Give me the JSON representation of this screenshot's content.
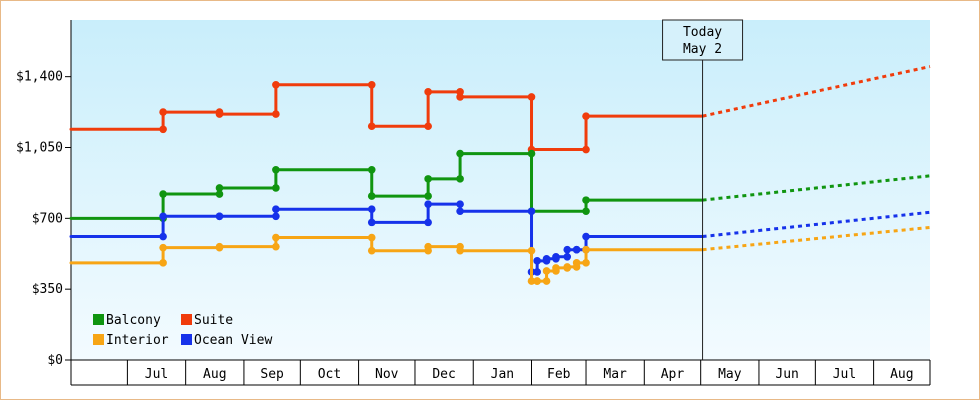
{
  "chart_data": {
    "type": "line",
    "title": "",
    "xlabel": "",
    "ylabel": "",
    "ylim": [
      0,
      1680
    ],
    "y_ticks": [
      {
        "value": 0,
        "label": "$0"
      },
      {
        "value": 350,
        "label": "$350"
      },
      {
        "value": 700,
        "label": "$700"
      },
      {
        "value": 1050,
        "label": "$1,050"
      },
      {
        "value": 1400,
        "label": "$1,400"
      }
    ],
    "x_range": [
      "2019-06-01",
      "2020-08-31"
    ],
    "x_ticks": [
      {
        "start": "2019-06-01",
        "end": "2019-07-01",
        "label": ""
      },
      {
        "start": "2019-07-01",
        "end": "2019-08-01",
        "label": "Jul"
      },
      {
        "start": "2019-08-01",
        "end": "2019-09-01",
        "label": "Aug"
      },
      {
        "start": "2019-09-01",
        "end": "2019-10-01",
        "label": "Sep"
      },
      {
        "start": "2019-10-01",
        "end": "2019-11-01",
        "label": "Oct"
      },
      {
        "start": "2019-11-01",
        "end": "2019-12-01",
        "label": "Nov"
      },
      {
        "start": "2019-12-01",
        "end": "2020-01-01",
        "label": "Dec"
      },
      {
        "start": "2020-01-01",
        "end": "2020-02-01",
        "label": "Jan"
      },
      {
        "start": "2020-02-01",
        "end": "2020-03-01",
        "label": "Feb"
      },
      {
        "start": "2020-03-01",
        "end": "2020-04-01",
        "label": "Mar"
      },
      {
        "start": "2020-04-01",
        "end": "2020-05-01",
        "label": "Apr"
      },
      {
        "start": "2020-05-01",
        "end": "2020-06-01",
        "label": "May"
      },
      {
        "start": "2020-06-01",
        "end": "2020-07-01",
        "label": "Jun"
      },
      {
        "start": "2020-07-01",
        "end": "2020-08-01",
        "label": "Jul"
      },
      {
        "start": "2020-08-01",
        "end": "2020-08-31",
        "label": "Aug"
      }
    ],
    "today": {
      "date": "2020-05-02",
      "label_line1": "Today",
      "label_line2": "May 2"
    },
    "grid": false,
    "legend_position": "bottom-left",
    "background_gradient": [
      "#c9eefb",
      "#f3fbff"
    ],
    "series": [
      {
        "name": "Suite",
        "color": "#f03c0c",
        "points": [
          [
            "2019-06-01",
            1140
          ],
          [
            "2019-07-20",
            1140
          ],
          [
            "2019-07-20",
            1225
          ],
          [
            "2019-08-19",
            1225
          ],
          [
            "2019-08-19",
            1215
          ],
          [
            "2019-09-18",
            1215
          ],
          [
            "2019-09-18",
            1360
          ],
          [
            "2019-11-08",
            1360
          ],
          [
            "2019-11-08",
            1155
          ],
          [
            "2019-12-08",
            1155
          ],
          [
            "2019-12-08",
            1325
          ],
          [
            "2019-12-25",
            1325
          ],
          [
            "2019-12-25",
            1300
          ],
          [
            "2020-02-01",
            1300
          ],
          [
            "2020-02-01",
            1040
          ],
          [
            "2020-03-01",
            1040
          ],
          [
            "2020-03-01",
            1205
          ],
          [
            "2020-05-02",
            1205
          ]
        ],
        "forecast": [
          [
            "2020-05-02",
            1205
          ],
          [
            "2020-08-31",
            1450
          ]
        ]
      },
      {
        "name": "Balcony",
        "color": "#109510",
        "points": [
          [
            "2019-06-01",
            700
          ],
          [
            "2019-07-20",
            700
          ],
          [
            "2019-07-20",
            820
          ],
          [
            "2019-08-19",
            820
          ],
          [
            "2019-08-19",
            850
          ],
          [
            "2019-09-18",
            850
          ],
          [
            "2019-09-18",
            940
          ],
          [
            "2019-11-08",
            940
          ],
          [
            "2019-11-08",
            810
          ],
          [
            "2019-12-08",
            810
          ],
          [
            "2019-12-08",
            895
          ],
          [
            "2019-12-25",
            895
          ],
          [
            "2019-12-25",
            1020
          ],
          [
            "2020-02-01",
            1020
          ],
          [
            "2020-02-01",
            735
          ],
          [
            "2020-03-01",
            735
          ],
          [
            "2020-03-01",
            790
          ],
          [
            "2020-05-02",
            790
          ]
        ],
        "forecast": [
          [
            "2020-05-02",
            790
          ],
          [
            "2020-08-31",
            910
          ]
        ]
      },
      {
        "name": "Ocean View",
        "color": "#1632ea",
        "points": [
          [
            "2019-06-01",
            610
          ],
          [
            "2019-07-20",
            610
          ],
          [
            "2019-07-20",
            710
          ],
          [
            "2019-08-19",
            710
          ],
          [
            "2019-08-19",
            710
          ],
          [
            "2019-09-18",
            710
          ],
          [
            "2019-09-18",
            745
          ],
          [
            "2019-11-08",
            745
          ],
          [
            "2019-11-08",
            680
          ],
          [
            "2019-12-08",
            680
          ],
          [
            "2019-12-08",
            770
          ],
          [
            "2019-12-25",
            770
          ],
          [
            "2019-12-25",
            735
          ],
          [
            "2020-02-01",
            735
          ],
          [
            "2020-02-01",
            435
          ],
          [
            "2020-02-04",
            435
          ],
          [
            "2020-02-04",
            490
          ],
          [
            "2020-02-09",
            490
          ],
          [
            "2020-02-09",
            500
          ],
          [
            "2020-02-14",
            500
          ],
          [
            "2020-02-14",
            510
          ],
          [
            "2020-02-20",
            510
          ],
          [
            "2020-02-20",
            545
          ],
          [
            "2020-02-25",
            545
          ],
          [
            "2020-02-25",
            545
          ],
          [
            "2020-03-01",
            545
          ],
          [
            "2020-03-01",
            610
          ],
          [
            "2020-05-02",
            610
          ]
        ],
        "forecast": [
          [
            "2020-05-02",
            610
          ],
          [
            "2020-08-31",
            730
          ]
        ]
      },
      {
        "name": "Interior",
        "color": "#f7a515",
        "points": [
          [
            "2019-06-01",
            480
          ],
          [
            "2019-07-20",
            480
          ],
          [
            "2019-07-20",
            555
          ],
          [
            "2019-08-19",
            555
          ],
          [
            "2019-08-19",
            560
          ],
          [
            "2019-09-18",
            560
          ],
          [
            "2019-09-18",
            605
          ],
          [
            "2019-11-08",
            605
          ],
          [
            "2019-11-08",
            540
          ],
          [
            "2019-12-08",
            540
          ],
          [
            "2019-12-08",
            560
          ],
          [
            "2019-12-25",
            560
          ],
          [
            "2019-12-25",
            540
          ],
          [
            "2020-02-01",
            540
          ],
          [
            "2020-02-01",
            390
          ],
          [
            "2020-02-04",
            390
          ],
          [
            "2020-02-04",
            390
          ],
          [
            "2020-02-09",
            390
          ],
          [
            "2020-02-09",
            440
          ],
          [
            "2020-02-14",
            440
          ],
          [
            "2020-02-14",
            455
          ],
          [
            "2020-02-20",
            455
          ],
          [
            "2020-02-20",
            460
          ],
          [
            "2020-02-25",
            460
          ],
          [
            "2020-02-25",
            480
          ],
          [
            "2020-03-01",
            480
          ],
          [
            "2020-03-01",
            545
          ],
          [
            "2020-05-02",
            545
          ]
        ],
        "forecast": [
          [
            "2020-05-02",
            545
          ],
          [
            "2020-08-31",
            655
          ]
        ]
      }
    ],
    "legend": [
      {
        "name": "Balcony",
        "color": "#109510"
      },
      {
        "name": "Suite",
        "color": "#f03c0c"
      },
      {
        "name": "Interior",
        "color": "#f7a515"
      },
      {
        "name": "Ocean View",
        "color": "#1632ea"
      }
    ]
  }
}
